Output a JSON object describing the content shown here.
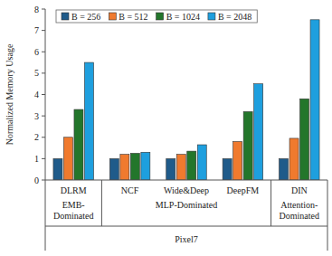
{
  "chart_data": {
    "type": "bar",
    "ylabel": "Normalized Memory Usage",
    "xlabel": "Pixel7",
    "categories": [
      "DLRM",
      "NCF",
      "Wide&Deep",
      "DeepFM",
      "DIN"
    ],
    "groups": [
      {
        "label": "EMB-Dominated",
        "categories": [
          "DLRM"
        ]
      },
      {
        "label": "MLP-Dominated",
        "categories": [
          "NCF",
          "Wide&Deep",
          "DeepFM"
        ]
      },
      {
        "label": "Attention-Dominated",
        "categories": [
          "DIN"
        ]
      }
    ],
    "series": [
      {
        "name": "B = 256",
        "color": "#1f5b8a",
        "values": [
          1,
          1,
          1,
          1,
          1
        ]
      },
      {
        "name": "B = 512",
        "color": "#f07a2e",
        "values": [
          2,
          1.2,
          1.2,
          1.8,
          1.95
        ]
      },
      {
        "name": "B = 1024",
        "color": "#23762b",
        "values": [
          3.3,
          1.25,
          1.35,
          3.2,
          3.8
        ]
      },
      {
        "name": "B = 2048",
        "color": "#1e9fde",
        "values": [
          5.5,
          1.3,
          1.65,
          4.5,
          7.5
        ]
      }
    ],
    "ylim": [
      0,
      8
    ],
    "yticks": [
      0,
      1,
      2,
      3,
      4,
      5,
      6,
      7,
      8
    ],
    "grid": false,
    "legend": "top"
  }
}
